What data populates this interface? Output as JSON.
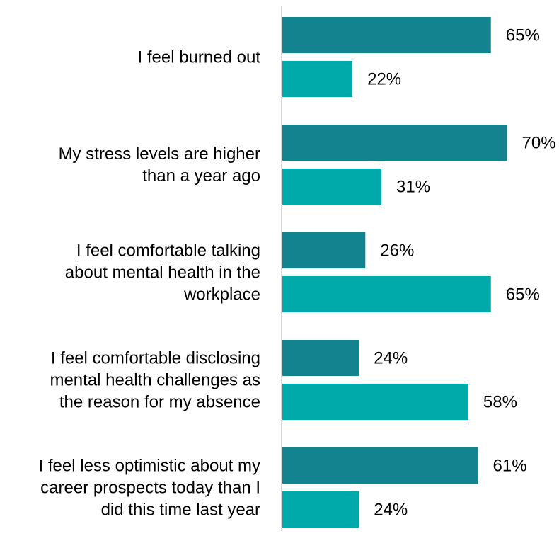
{
  "chart_data": {
    "type": "bar",
    "orientation": "horizontal",
    "categories": [
      [
        "I feel burned out"
      ],
      [
        "My stress levels are higher",
        "than a year ago"
      ],
      [
        "I feel comfortable talking",
        "about mental health in the",
        "workplace"
      ],
      [
        "I feel comfortable disclosing",
        "mental health challenges as",
        "the reason for my absence"
      ],
      [
        "I feel less optimistic about my",
        "career prospects today than I",
        "did this time last year"
      ]
    ],
    "series": [
      {
        "values": [
          65,
          70,
          26,
          24,
          61
        ],
        "value_labels": [
          "65%",
          "70%",
          "26%",
          "24%",
          "61%"
        ],
        "color": "#12838F"
      },
      {
        "values": [
          22,
          31,
          65,
          58,
          24
        ],
        "value_labels": [
          "22%",
          "31%",
          "65%",
          "58%",
          "24%"
        ],
        "color": "#00A9AA"
      }
    ],
    "value_suffix": "%",
    "xlim": [
      0,
      100
    ],
    "grid": false,
    "legend": "none"
  }
}
